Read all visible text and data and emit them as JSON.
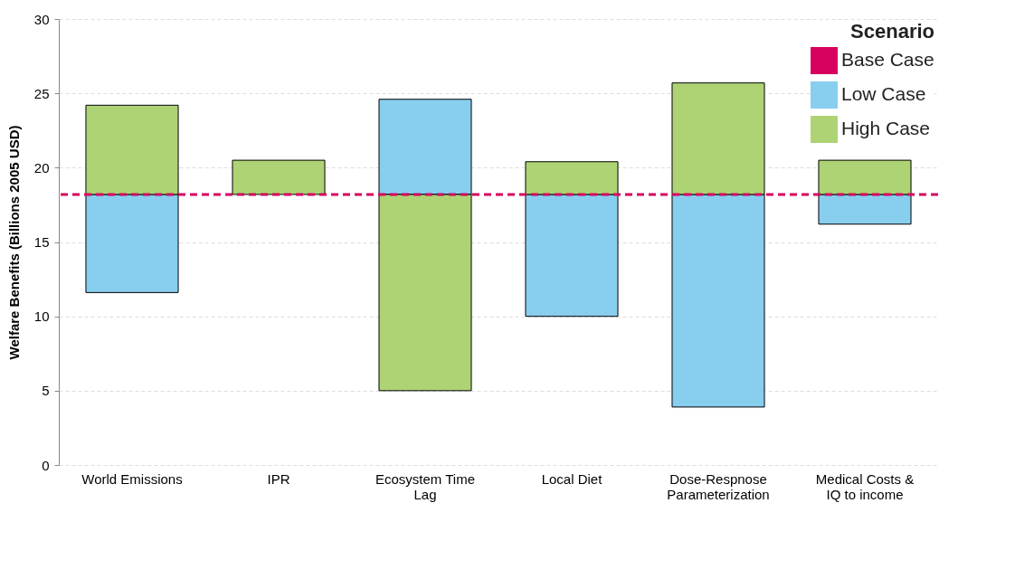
{
  "chart_data": {
    "type": "bar",
    "ylabel": "Welfare Benefits (Billions 2005 USD)",
    "legend_title": "Scenario",
    "legend": "top right",
    "categories": [
      "World Emissions",
      "IPR",
      "Ecosystem Time Lag",
      "Local Diet",
      "Dose-Respnose Parameterization",
      "Medical Costs & IQ to income"
    ],
    "series": [
      {
        "name": "Low Case",
        "color": "#87ceef",
        "base": [
          18.2,
          null,
          18.2,
          18.2,
          18.2,
          18.2
        ],
        "values": [
          -6.6,
          null,
          6.4,
          -8.2,
          -14.3,
          -2.0
        ]
      },
      {
        "name": "High Case",
        "color": "#aed375",
        "base": [
          18.2,
          18.2,
          18.2,
          18.2,
          18.2,
          18.2
        ],
        "values": [
          6.0,
          2.3,
          -13.2,
          2.2,
          7.5,
          2.3
        ]
      }
    ],
    "ref_lines": [
      {
        "axis": "y",
        "value": 18.2,
        "label": "Base Case",
        "color": "#d6005f",
        "line_style": "dashed"
      }
    ],
    "ylim": [
      0,
      30
    ],
    "yticks": [
      0,
      5,
      10,
      15,
      20,
      25,
      30
    ],
    "grid": "y"
  }
}
